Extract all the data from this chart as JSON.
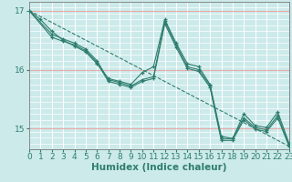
{
  "title": "",
  "xlabel": "Humidex (Indice chaleur)",
  "bg_color": "#cceaea",
  "grid_color": "#ffffff",
  "line_color": "#2e7d6e",
  "series": [
    {
      "x": [
        0,
        1,
        2,
        3,
        4,
        5,
        6,
        7,
        8,
        9,
        10,
        11,
        12,
        13,
        14,
        15,
        16,
        17,
        18,
        19,
        20,
        21,
        22,
        23
      ],
      "y": [
        17.0,
        16.85,
        16.65,
        16.5,
        16.4,
        16.3,
        16.1,
        15.85,
        15.8,
        15.75,
        15.95,
        16.05,
        16.85,
        16.45,
        16.1,
        16.05,
        15.75,
        14.87,
        14.83,
        15.25,
        15.05,
        15.02,
        15.28,
        14.75
      ]
    },
    {
      "x": [
        0,
        2,
        3,
        4,
        5,
        6,
        7,
        8,
        9,
        10,
        11,
        12,
        13,
        14,
        15,
        16,
        17,
        18,
        19,
        20,
        21,
        22,
        23
      ],
      "y": [
        17.0,
        16.6,
        16.52,
        16.45,
        16.35,
        16.15,
        15.83,
        15.78,
        15.72,
        15.83,
        15.88,
        16.82,
        16.42,
        16.05,
        16.0,
        15.73,
        14.83,
        14.83,
        15.18,
        15.02,
        14.98,
        15.22,
        14.72
      ]
    },
    {
      "x": [
        0,
        2,
        3,
        4,
        5,
        6,
        7,
        8,
        9,
        10,
        11,
        12,
        13,
        14,
        15,
        16,
        17,
        18,
        19,
        20,
        21,
        22,
        23
      ],
      "y": [
        17.0,
        16.55,
        16.48,
        16.42,
        16.32,
        16.12,
        15.8,
        15.75,
        15.7,
        15.8,
        15.85,
        16.78,
        16.38,
        16.02,
        15.97,
        15.7,
        14.8,
        14.8,
        15.15,
        14.99,
        14.95,
        15.18,
        14.7
      ]
    },
    {
      "x": [
        0,
        23
      ],
      "y": [
        17.0,
        14.7
      ],
      "linestyle": "--",
      "no_marker": true
    }
  ],
  "xlim": [
    0,
    23
  ],
  "ylim": [
    14.65,
    17.15
  ],
  "yticks": [
    15,
    16,
    17
  ],
  "xticks": [
    0,
    1,
    2,
    3,
    4,
    5,
    6,
    7,
    8,
    9,
    10,
    11,
    12,
    13,
    14,
    15,
    16,
    17,
    18,
    19,
    20,
    21,
    22,
    23
  ],
  "tick_fontsize": 6.5,
  "label_fontsize": 7.5,
  "red_grid_color": "#e8aaaa",
  "red_grid_yvals": [
    15,
    16,
    17
  ]
}
